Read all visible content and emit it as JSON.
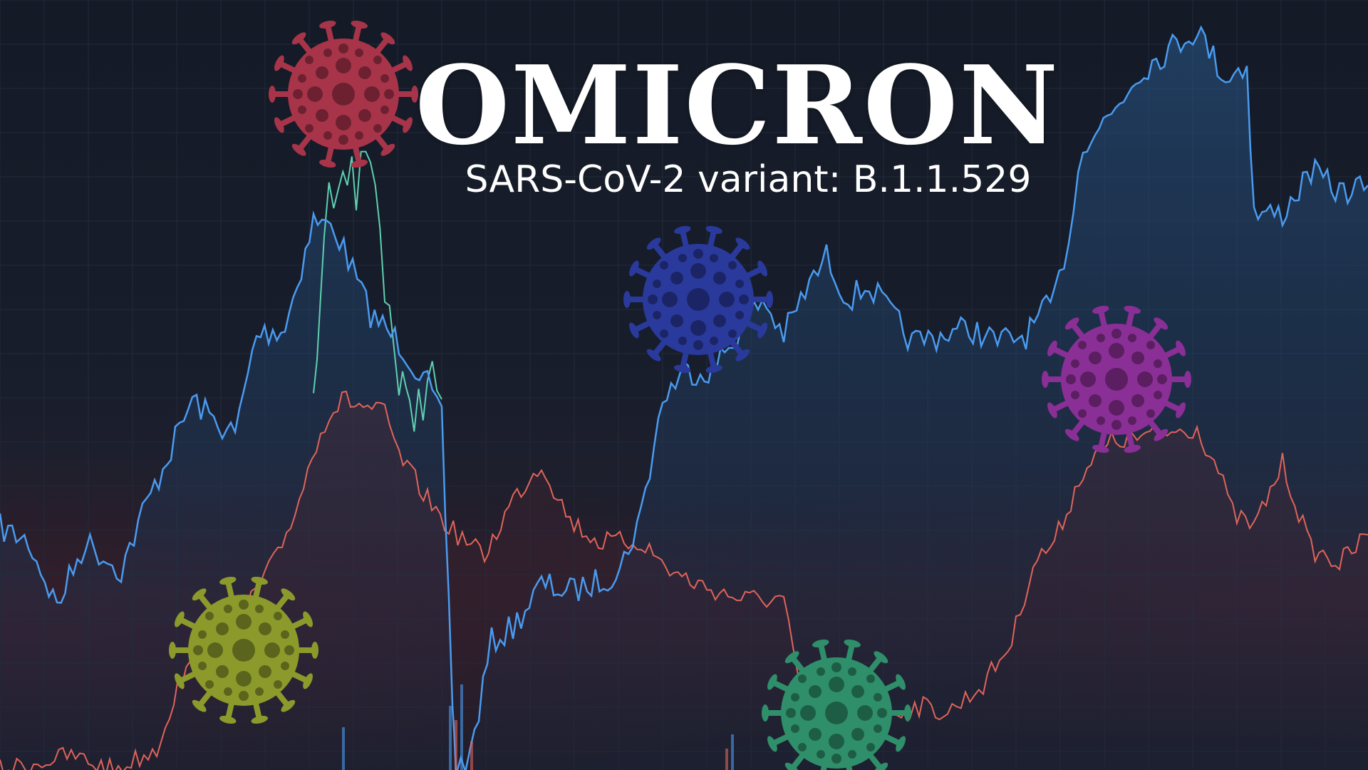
{
  "headline": {
    "title": "OMICRON",
    "subtitle": "SARS-CoV-2 variant: B.1.1.529"
  },
  "colors": {
    "background": "#151b27",
    "blue_line": "#4a9bf0",
    "red_line": "#e0645a",
    "teal_line": "#5fd0b0",
    "virus_red": "#a8344a",
    "virus_blue": "#2a3a9c",
    "virus_purple": "#8a2f96",
    "virus_olive": "#8c9a2c",
    "virus_green": "#2f8f6a"
  },
  "icons": [
    "virus-icon"
  ]
}
